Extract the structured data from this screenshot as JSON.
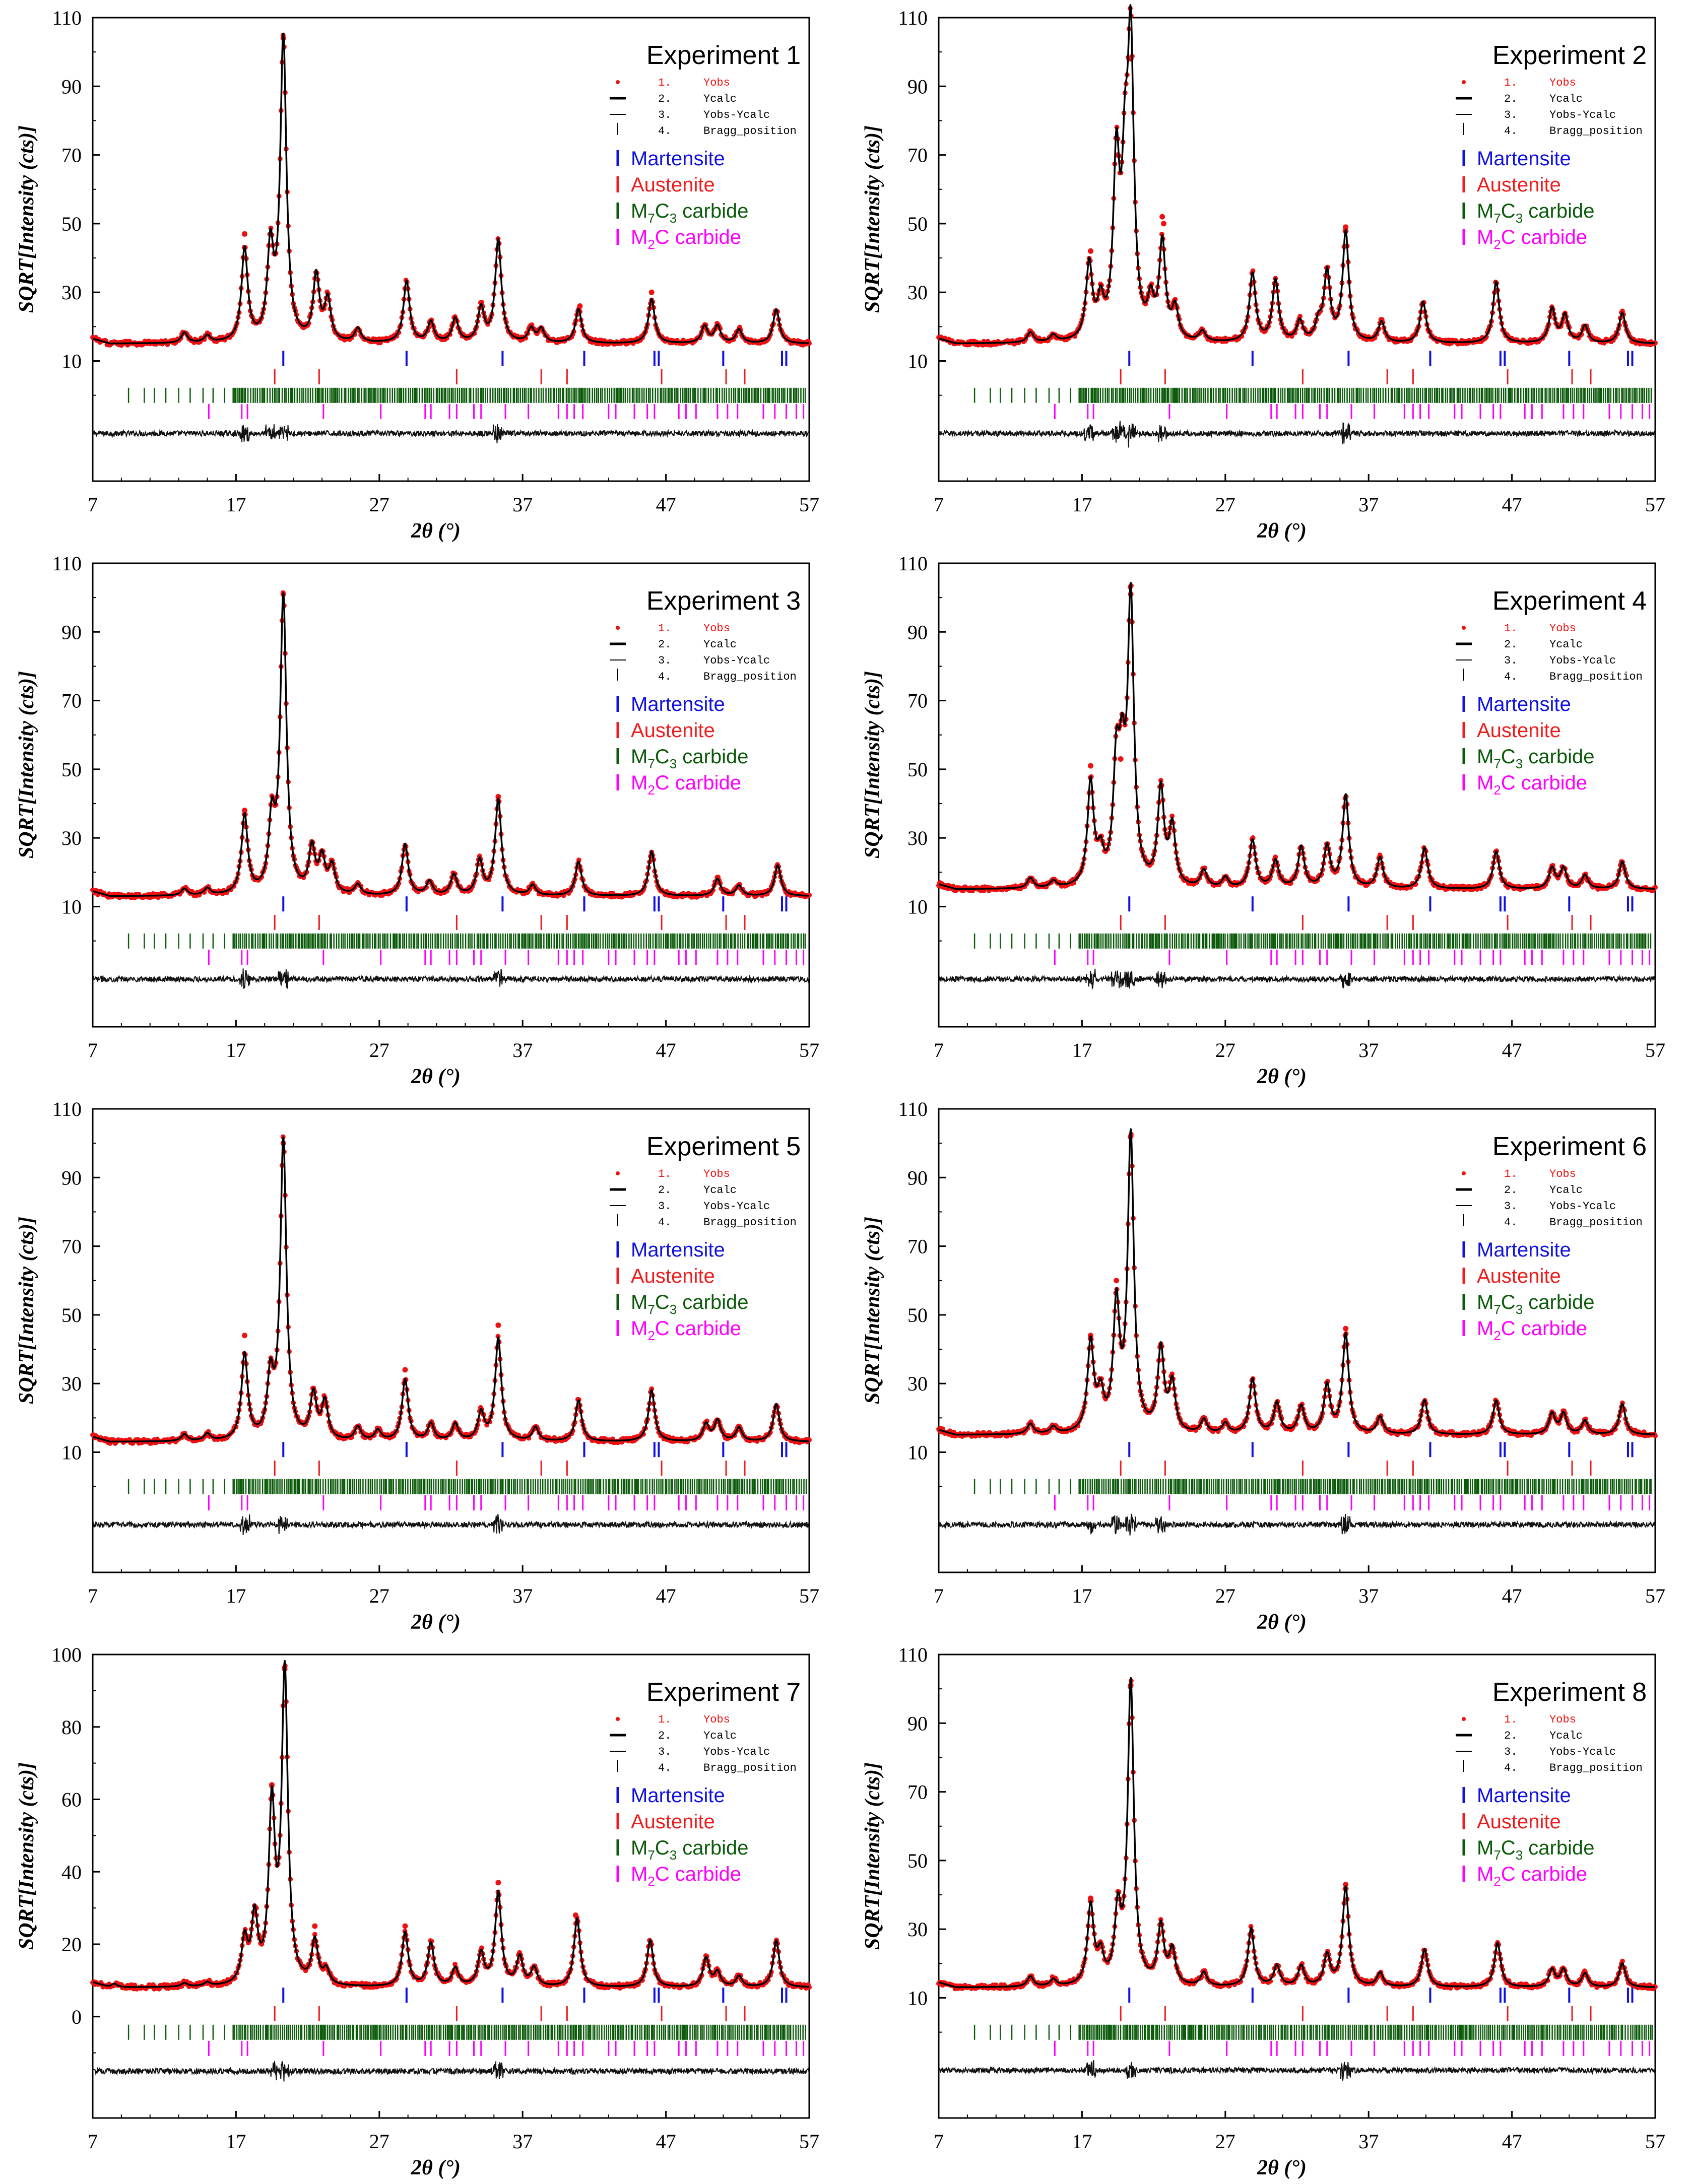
{
  "figure": {
    "phase_colors": {
      "martensite": "#1010e0",
      "austenite": "#ee1c1c",
      "m7c3": "#0a5a0a",
      "m2c": "#ff00ff",
      "obs": "#ee1111",
      "calc": "#000000"
    },
    "legend": {
      "series": [
        {
          "num": "1.",
          "label": "Yobs",
          "color": "#ee1111"
        },
        {
          "num": "2.",
          "label": "Ycalc",
          "color": "#000000"
        },
        {
          "num": "3.",
          "label": "Yobs-Ycalc",
          "color": "#000000"
        },
        {
          "num": "4.",
          "label": "Bragg_position",
          "color": "#000000"
        }
      ],
      "phases": [
        {
          "key": "martensite",
          "label": "Martensite",
          "color": "#1010e0"
        },
        {
          "key": "austenite",
          "label": "Austenite",
          "color": "#ee1c1c"
        },
        {
          "key": "m7c3",
          "prefix": "M",
          "sub1": "7",
          "mid": "C",
          "sub2": "3",
          "suffix": " carbide",
          "color": "#0a5a0a"
        },
        {
          "key": "m2c",
          "prefix": "M",
          "sub1": "2",
          "mid": "C",
          "sub2": "",
          "suffix": " carbide",
          "color": "#ff00ff"
        }
      ]
    },
    "bragg_positions": {
      "martensite": [
        20.3,
        28.9,
        35.6,
        41.3,
        46.2,
        46.5,
        51.0,
        55.1,
        55.4
      ],
      "austenite": [
        19.7,
        22.8,
        32.4,
        38.3,
        40.1,
        46.7,
        51.2,
        52.5
      ],
      "m2c": [
        15.1,
        17.4,
        17.8,
        23.1,
        27.1,
        30.2,
        30.6,
        31.9,
        32.4,
        33.6,
        34.1,
        35.8,
        37.4,
        39.5,
        40.1,
        40.6,
        41.2,
        43.0,
        43.5,
        44.8,
        45.7,
        46.2,
        47.9,
        48.4,
        49.1,
        50.6,
        51.3,
        52.0,
        53.8,
        54.6,
        55.4,
        56.1,
        56.6
      ]
    }
  },
  "chart_data": [
    {
      "type": "line",
      "title": "Experiment 1",
      "xlabel": "2θ (°)",
      "ylabel": "SQRT[Intensity (cts)]",
      "xlim": [
        7,
        57
      ],
      "ylim": [
        -25,
        110
      ],
      "xticks": [
        7,
        17,
        27,
        37,
        47,
        57
      ],
      "yticks": [
        10,
        30,
        50,
        70,
        90,
        110
      ],
      "background": 15,
      "peaks": [
        [
          13.4,
          3.0
        ],
        [
          15.0,
          2.0
        ],
        [
          17.6,
          27.0
        ],
        [
          19.4,
          26.0
        ],
        [
          20.3,
          88.0
        ],
        [
          22.6,
          19.0
        ],
        [
          23.4,
          12.0
        ],
        [
          25.5,
          4.0
        ],
        [
          28.9,
          18.0
        ],
        [
          30.6,
          6.0
        ],
        [
          32.3,
          7.0
        ],
        [
          34.1,
          10.0
        ],
        [
          35.3,
          30.0
        ],
        [
          37.6,
          4.0
        ],
        [
          38.3,
          4.0
        ],
        [
          40.9,
          10.0
        ],
        [
          46.0,
          13.0
        ],
        [
          49.7,
          5.0
        ],
        [
          50.6,
          5.0
        ],
        [
          52.1,
          4.0
        ],
        [
          54.7,
          10.0
        ]
      ],
      "obs_outliers": [
        [
          17.6,
          47.0
        ],
        [
          20.3,
          104.0
        ],
        [
          41.0,
          26.0
        ],
        [
          46.0,
          30.0
        ]
      ]
    },
    {
      "type": "line",
      "title": "Experiment 2",
      "xlabel": "2θ (°)",
      "ylabel": "SQRT[Intensity (cts)]",
      "xlim": [
        7,
        57
      ],
      "ylim": [
        -25,
        110
      ],
      "xticks": [
        7,
        17,
        27,
        37,
        47,
        57
      ],
      "yticks": [
        10,
        30,
        50,
        70,
        90,
        110
      ],
      "background": 15,
      "peaks": [
        [
          13.4,
          3.0
        ],
        [
          15.0,
          2.0
        ],
        [
          17.5,
          22.0
        ],
        [
          18.3,
          10.0
        ],
        [
          19.4,
          50.0
        ],
        [
          20.0,
          40.0
        ],
        [
          20.4,
          82.0
        ],
        [
          21.8,
          10.0
        ],
        [
          22.6,
          28.0
        ],
        [
          23.5,
          9.0
        ],
        [
          25.4,
          3.0
        ],
        [
          28.9,
          20.0
        ],
        [
          30.5,
          18.0
        ],
        [
          32.2,
          6.0
        ],
        [
          33.5,
          5.0
        ],
        [
          34.1,
          20.0
        ],
        [
          35.4,
          32.0
        ],
        [
          37.9,
          6.0
        ],
        [
          40.8,
          12.0
        ],
        [
          45.9,
          18.0
        ],
        [
          49.8,
          10.0
        ],
        [
          50.7,
          8.0
        ],
        [
          52.1,
          5.0
        ],
        [
          54.7,
          9.0
        ]
      ],
      "obs_outliers": [
        [
          17.6,
          42.0
        ],
        [
          19.5,
          70.0
        ],
        [
          20.4,
          98.0
        ],
        [
          22.6,
          52.0
        ],
        [
          22.7,
          50.0
        ],
        [
          35.4,
          49.0
        ]
      ]
    },
    {
      "type": "line",
      "title": "Experiment 3",
      "xlabel": "2θ (°)",
      "ylabel": "SQRT[Intensity (cts)]",
      "xlim": [
        7,
        57
      ],
      "ylim": [
        -25,
        110
      ],
      "xticks": [
        7,
        17,
        27,
        37,
        47,
        57
      ],
      "yticks": [
        10,
        30,
        50,
        70,
        90,
        110
      ],
      "background": 13,
      "peaks": [
        [
          13.4,
          2.0
        ],
        [
          15.0,
          2.0
        ],
        [
          17.6,
          23.0
        ],
        [
          19.5,
          20.0
        ],
        [
          20.3,
          86.0
        ],
        [
          22.3,
          13.0
        ],
        [
          23.0,
          10.0
        ],
        [
          23.7,
          8.0
        ],
        [
          25.5,
          3.0
        ],
        [
          28.8,
          15.0
        ],
        [
          30.5,
          4.0
        ],
        [
          32.2,
          6.0
        ],
        [
          34.0,
          10.0
        ],
        [
          35.3,
          28.0
        ],
        [
          37.7,
          3.0
        ],
        [
          40.9,
          10.0
        ],
        [
          46.0,
          13.0
        ],
        [
          50.6,
          5.0
        ],
        [
          52.1,
          3.0
        ],
        [
          54.8,
          9.0
        ]
      ],
      "obs_outliers": [
        [
          17.6,
          38.0
        ],
        [
          20.3,
          101.0
        ],
        [
          35.3,
          42.0
        ]
      ]
    },
    {
      "type": "line",
      "title": "Experiment 4",
      "xlabel": "2θ (°)",
      "ylabel": "SQRT[Intensity (cts)]",
      "xlim": [
        7,
        57
      ],
      "ylim": [
        -25,
        110
      ],
      "xticks": [
        7,
        17,
        27,
        37,
        47,
        57
      ],
      "yticks": [
        10,
        30,
        50,
        70,
        90,
        110
      ],
      "background": 15,
      "peaks": [
        [
          13.4,
          3.0
        ],
        [
          15.0,
          2.0
        ],
        [
          17.6,
          30.0
        ],
        [
          18.3,
          8.0
        ],
        [
          19.4,
          32.0
        ],
        [
          19.8,
          28.0
        ],
        [
          20.4,
          82.0
        ],
        [
          22.5,
          28.0
        ],
        [
          23.3,
          17.0
        ],
        [
          25.5,
          5.0
        ],
        [
          27.0,
          3.0
        ],
        [
          28.9,
          14.0
        ],
        [
          30.5,
          8.0
        ],
        [
          32.3,
          12.0
        ],
        [
          34.1,
          12.0
        ],
        [
          35.4,
          27.0
        ],
        [
          37.8,
          9.0
        ],
        [
          40.9,
          12.0
        ],
        [
          45.9,
          11.0
        ],
        [
          49.8,
          6.0
        ],
        [
          50.6,
          6.0
        ],
        [
          52.1,
          4.0
        ],
        [
          54.7,
          8.0
        ]
      ],
      "obs_outliers": [
        [
          17.6,
          51.0
        ],
        [
          19.7,
          53.0
        ],
        [
          20.4,
          101.0
        ],
        [
          22.5,
          45.0
        ]
      ]
    },
    {
      "type": "line",
      "title": "Experiment 5",
      "xlabel": "2θ (°)",
      "ylabel": "SQRT[Intensity (cts)]",
      "xlim": [
        7,
        57
      ],
      "ylim": [
        -25,
        110
      ],
      "xticks": [
        7,
        17,
        27,
        37,
        47,
        57
      ],
      "yticks": [
        10,
        30,
        50,
        70,
        90,
        110
      ],
      "background": 13,
      "peaks": [
        [
          13.4,
          2.0
        ],
        [
          15.0,
          2.0
        ],
        [
          17.6,
          25.0
        ],
        [
          19.4,
          17.0
        ],
        [
          20.3,
          87.0
        ],
        [
          22.4,
          13.0
        ],
        [
          23.2,
          11.0
        ],
        [
          25.5,
          4.0
        ],
        [
          26.9,
          3.0
        ],
        [
          28.8,
          18.0
        ],
        [
          30.6,
          5.0
        ],
        [
          32.3,
          5.0
        ],
        [
          34.1,
          8.0
        ],
        [
          35.3,
          30.0
        ],
        [
          37.9,
          4.0
        ],
        [
          40.9,
          12.0
        ],
        [
          46.0,
          15.0
        ],
        [
          49.8,
          5.0
        ],
        [
          50.6,
          6.0
        ],
        [
          52.1,
          4.0
        ],
        [
          54.7,
          11.0
        ]
      ],
      "obs_outliers": [
        [
          17.6,
          44.0
        ],
        [
          20.3,
          100.0
        ],
        [
          35.3,
          47.0
        ],
        [
          28.8,
          34.0
        ]
      ]
    },
    {
      "type": "line",
      "title": "Experiment 6",
      "xlabel": "2θ (°)",
      "ylabel": "SQRT[Intensity (cts)]",
      "xlim": [
        7,
        57
      ],
      "ylim": [
        -25,
        110
      ],
      "xticks": [
        7,
        17,
        27,
        37,
        47,
        57
      ],
      "yticks": [
        10,
        30,
        50,
        70,
        90,
        110
      ],
      "background": 15,
      "peaks": [
        [
          13.4,
          3.0
        ],
        [
          15.0,
          2.0
        ],
        [
          17.6,
          26.0
        ],
        [
          18.3,
          10.0
        ],
        [
          19.4,
          36.0
        ],
        [
          20.4,
          86.0
        ],
        [
          22.5,
          24.0
        ],
        [
          23.3,
          14.0
        ],
        [
          25.5,
          4.0
        ],
        [
          27.0,
          3.0
        ],
        [
          28.9,
          16.0
        ],
        [
          30.6,
          9.0
        ],
        [
          32.3,
          8.0
        ],
        [
          34.1,
          14.0
        ],
        [
          35.4,
          29.0
        ],
        [
          37.8,
          5.0
        ],
        [
          40.9,
          10.0
        ],
        [
          45.9,
          10.0
        ],
        [
          49.8,
          6.0
        ],
        [
          50.6,
          6.0
        ],
        [
          52.1,
          4.0
        ],
        [
          54.7,
          9.0
        ]
      ],
      "obs_outliers": [
        [
          17.6,
          44.0
        ],
        [
          19.4,
          60.0
        ],
        [
          20.4,
          102.0
        ],
        [
          22.5,
          41.0
        ],
        [
          35.4,
          46.0
        ]
      ]
    },
    {
      "type": "line",
      "title": "Experiment 7",
      "xlabel": "2θ (°)",
      "ylabel": "SQRT[Intensity (cts)]",
      "xlim": [
        7,
        57
      ],
      "ylim": [
        -28,
        100
      ],
      "xticks": [
        7,
        17,
        27,
        37,
        47,
        57
      ],
      "yticks": [
        0,
        20,
        40,
        60,
        80,
        100
      ],
      "background": 8,
      "peaks": [
        [
          8.5,
          1.0
        ],
        [
          13.4,
          1.0
        ],
        [
          15.0,
          1.0
        ],
        [
          17.6,
          12.0
        ],
        [
          18.3,
          18.0
        ],
        [
          19.5,
          48.0
        ],
        [
          20.4,
          86.0
        ],
        [
          22.5,
          12.0
        ],
        [
          23.3,
          4.0
        ],
        [
          28.8,
          15.0
        ],
        [
          30.6,
          12.0
        ],
        [
          32.3,
          5.0
        ],
        [
          34.1,
          9.0
        ],
        [
          35.3,
          26.0
        ],
        [
          36.8,
          8.0
        ],
        [
          37.8,
          5.0
        ],
        [
          40.8,
          19.0
        ],
        [
          45.9,
          13.0
        ],
        [
          49.8,
          8.0
        ],
        [
          50.6,
          4.0
        ],
        [
          52.1,
          3.0
        ],
        [
          54.7,
          13.0
        ]
      ],
      "obs_outliers": [
        [
          18.4,
          30.0
        ],
        [
          19.5,
          64.0
        ],
        [
          20.4,
          96.0
        ],
        [
          22.5,
          25.0
        ],
        [
          28.8,
          25.0
        ],
        [
          35.3,
          37.0
        ],
        [
          40.7,
          28.0
        ],
        [
          40.8,
          26.0
        ],
        [
          54.7,
          20.0
        ]
      ]
    },
    {
      "type": "line",
      "title": "Experiment 8",
      "xlabel": "2θ (°)",
      "ylabel": "SQRT[Intensity (cts)]",
      "xlim": [
        7,
        57
      ],
      "ylim": [
        -25,
        110
      ],
      "xticks": [
        7,
        17,
        27,
        37,
        47,
        57
      ],
      "yticks": [
        10,
        30,
        50,
        70,
        90,
        110
      ],
      "background": 13,
      "peaks": [
        [
          13.4,
          3.0
        ],
        [
          15.0,
          2.0
        ],
        [
          17.6,
          23.0
        ],
        [
          18.3,
          8.0
        ],
        [
          19.5,
          20.0
        ],
        [
          20.4,
          88.0
        ],
        [
          22.5,
          17.0
        ],
        [
          23.3,
          10.0
        ],
        [
          25.5,
          4.0
        ],
        [
          28.8,
          17.0
        ],
        [
          30.6,
          6.0
        ],
        [
          32.3,
          6.0
        ],
        [
          34.1,
          9.0
        ],
        [
          35.4,
          29.0
        ],
        [
          37.8,
          4.0
        ],
        [
          40.9,
          11.0
        ],
        [
          46.0,
          13.0
        ],
        [
          49.8,
          5.0
        ],
        [
          50.6,
          5.0
        ],
        [
          52.1,
          4.0
        ],
        [
          54.7,
          7.0
        ]
      ],
      "obs_outliers": [
        [
          17.6,
          39.0
        ],
        [
          20.4,
          101.0
        ],
        [
          35.4,
          43.0
        ]
      ]
    }
  ]
}
